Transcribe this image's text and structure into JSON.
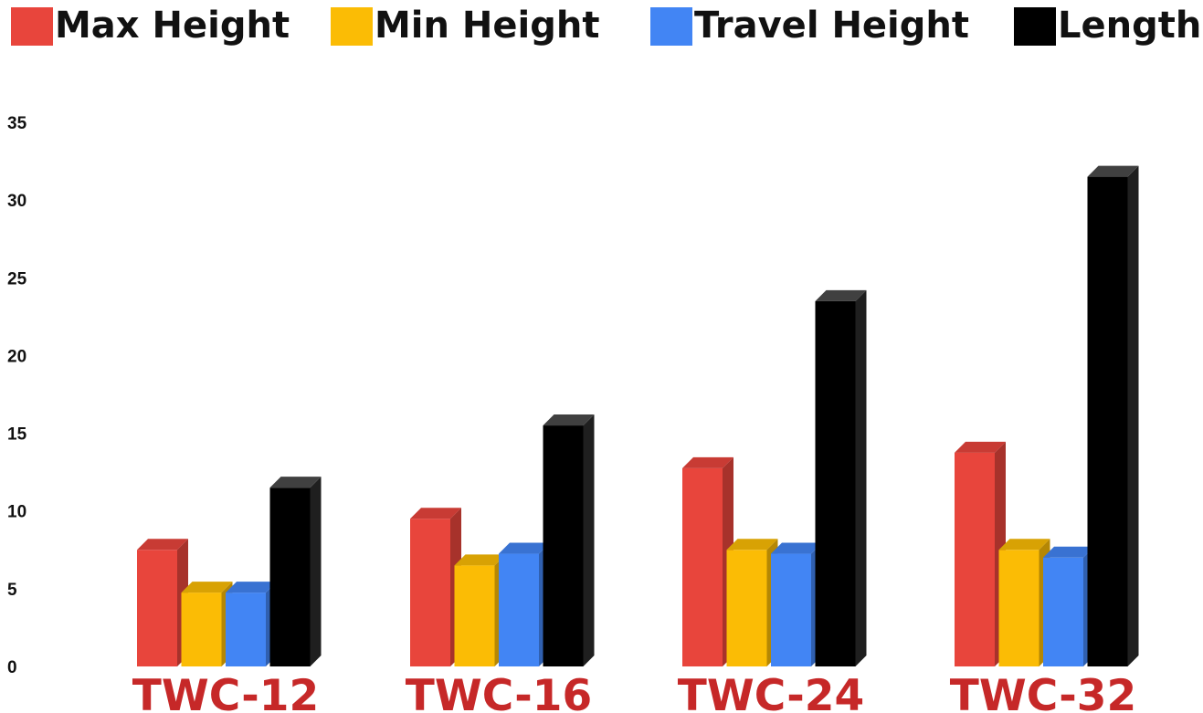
{
  "chart_data": {
    "type": "bar",
    "title": "",
    "xlabel": "",
    "ylabel": "",
    "categories": [
      "TWC-12",
      "TWC-16",
      "TWC-24",
      "TWC-32"
    ],
    "series": [
      {
        "name": "Max Height",
        "color": "#e8453c",
        "values": [
          7.5,
          9.5,
          12.75,
          13.75
        ]
      },
      {
        "name": "Min Height",
        "color": "#fbbc05",
        "values": [
          4.75,
          6.5,
          7.5,
          7.5
        ]
      },
      {
        "name": "Travel Height",
        "color": "#4285f4",
        "values": [
          4.75,
          7.25,
          7.25,
          7
        ]
      },
      {
        "name": "Length",
        "color": "#000000",
        "values": [
          11.5,
          15.5,
          23.5,
          31.5
        ]
      }
    ],
    "yticks": [
      0,
      5,
      10,
      15,
      20,
      25,
      30,
      35
    ],
    "ylim": [
      0,
      35
    ],
    "grid": false,
    "legend_position": "top",
    "category_label_color": "#c62828"
  }
}
